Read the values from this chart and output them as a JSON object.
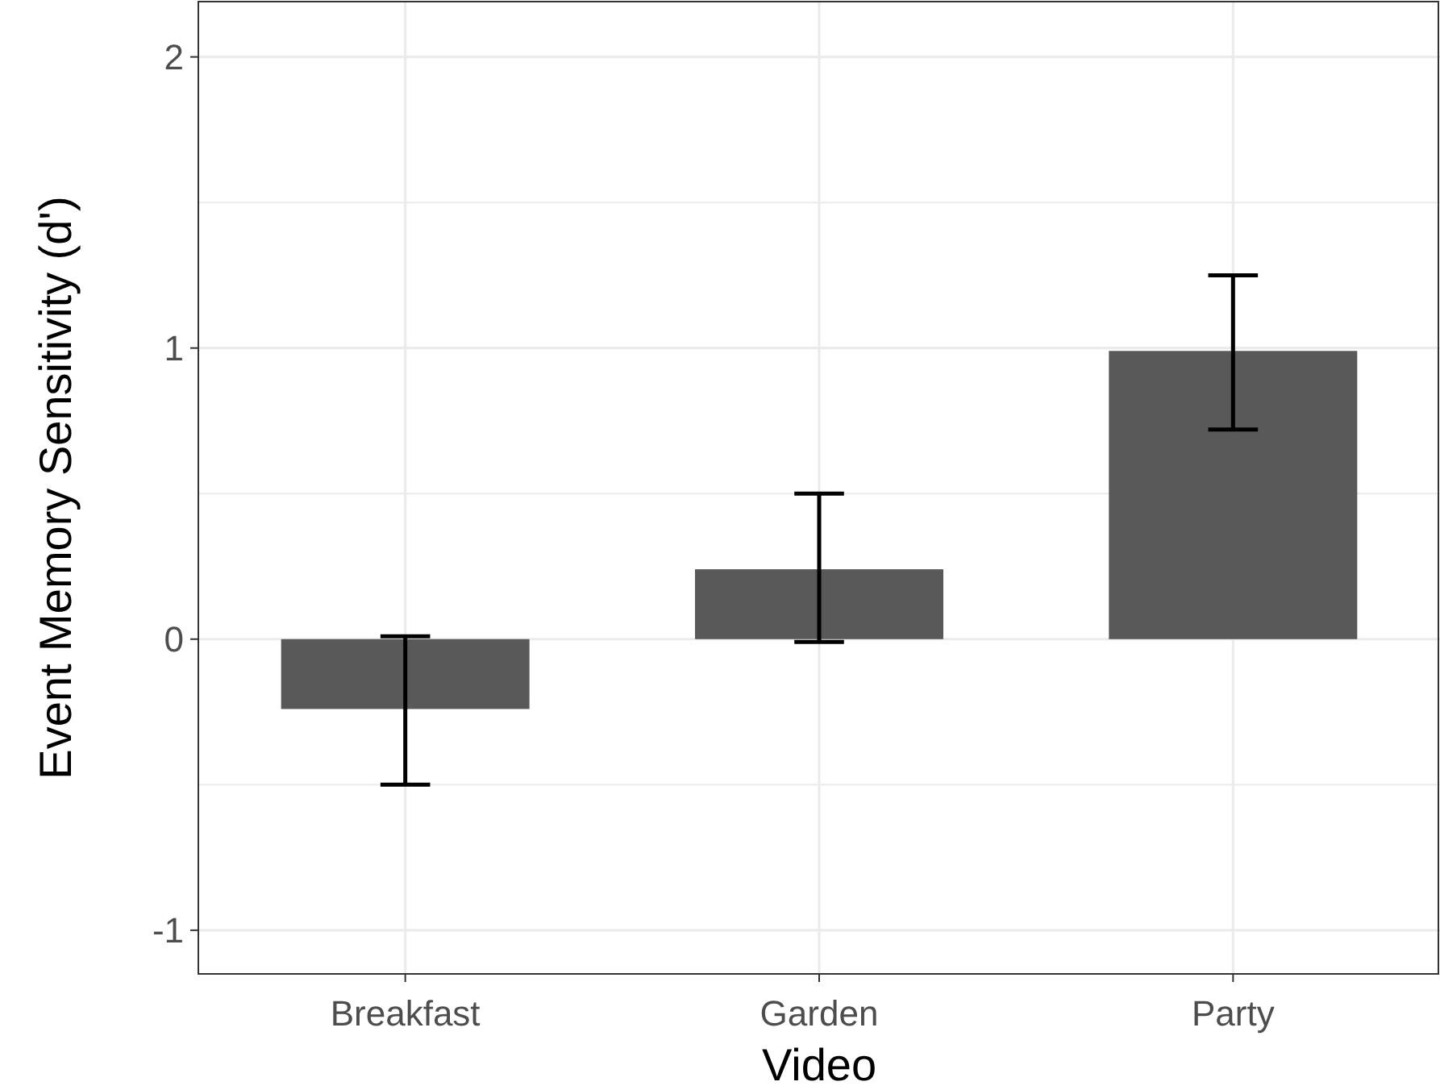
{
  "chart_data": {
    "type": "bar",
    "xlabel": "Video",
    "ylabel": "Event Memory Sensitivity (d')",
    "categories": [
      "Breakfast",
      "Garden",
      "Party"
    ],
    "values": [
      -0.24,
      0.24,
      0.99
    ],
    "errors": [
      [
        -0.5,
        0.01
      ],
      [
        -0.01,
        0.5
      ],
      [
        0.72,
        1.25
      ]
    ],
    "color": "#595959",
    "ylim": [
      -1.15,
      2.19
    ],
    "yticks": [
      -1,
      {
        "value": -0.5,
        "label": null
      },
      0,
      {
        "value": 0.5,
        "label": null
      },
      1,
      {
        "value": 1.5,
        "label": null
      },
      2
    ],
    "grid": true
  }
}
